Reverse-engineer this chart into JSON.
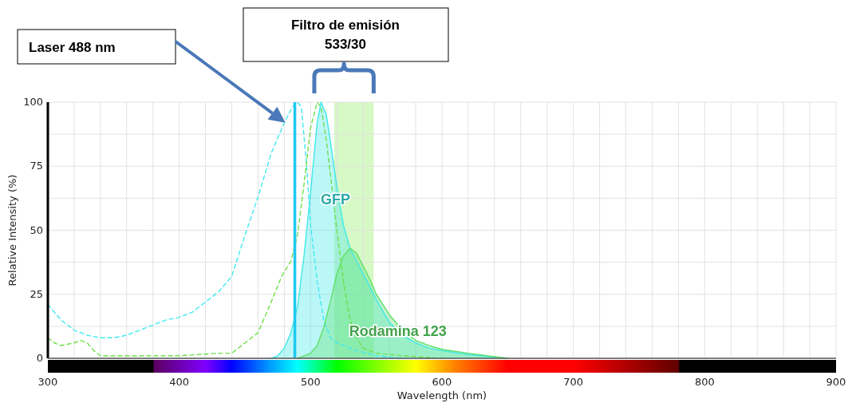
{
  "chart_data": {
    "type": "area",
    "xlabel": "Wavelength (nm)",
    "ylabel": "Relative Intensity (%)",
    "xlim": [
      300,
      900
    ],
    "xticks": [
      300,
      {
        "value": 320,
        "label": null
      },
      {
        "value": 340,
        "label": null
      },
      {
        "value": 360,
        "label": null
      },
      {
        "value": 380,
        "label": null
      },
      400,
      {
        "value": 420,
        "label": null
      },
      {
        "value": 440,
        "label": null
      },
      {
        "value": 460,
        "label": null
      },
      {
        "value": 480,
        "label": null
      },
      500,
      {
        "value": 520,
        "label": null
      },
      {
        "value": 540,
        "label": null
      },
      {
        "value": 560,
        "label": null
      },
      {
        "value": 580,
        "label": null
      },
      600,
      {
        "value": 620,
        "label": null
      },
      {
        "value": 640,
        "label": null
      },
      {
        "value": 660,
        "label": null
      },
      {
        "value": 680,
        "label": null
      },
      700,
      {
        "value": 720,
        "label": null
      },
      {
        "value": 740,
        "label": null
      },
      {
        "value": 760,
        "label": null
      },
      {
        "value": 780,
        "label": null
      },
      800,
      {
        "value": 820,
        "label": null
      },
      {
        "value": 840,
        "label": null
      },
      {
        "value": 860,
        "label": null
      },
      {
        "value": 880,
        "label": null
      },
      900
    ],
    "ylim": [
      0,
      100
    ],
    "yticks": [
      0,
      {
        "value": 12.5,
        "label": null
      },
      25,
      {
        "value": 37.5,
        "label": null
      },
      50,
      {
        "value": 62.5,
        "label": null
      },
      75,
      {
        "value": 87.5,
        "label": null
      },
      100
    ],
    "grid": true,
    "legend": false,
    "series": [
      {
        "type": "line",
        "line_style": "dashed",
        "color": "#40eaf2",
        "x": [
          300,
          310,
          320,
          330,
          340,
          350,
          360,
          370,
          380,
          390,
          400,
          410,
          420,
          430,
          440,
          450,
          460,
          470,
          480,
          486,
          490,
          493,
          497,
          500,
          505,
          510,
          515,
          520,
          525,
          535,
          550,
          570
        ],
        "values": [
          21,
          15,
          11,
          9,
          8,
          8,
          9,
          11,
          13,
          15,
          16,
          18,
          22,
          26,
          32,
          48,
          63,
          80,
          92,
          98,
          100,
          98,
          75,
          52,
          30,
          15,
          8,
          6,
          5,
          3,
          1,
          0
        ]
      },
      {
        "type": "line",
        "line_style": "dashed",
        "color": "#6ee04a",
        "x": [
          300,
          305,
          310,
          320,
          325,
          330,
          335,
          340,
          350,
          400,
          430,
          440,
          450,
          460,
          470,
          478,
          485,
          490,
          495,
          500,
          505,
          508,
          512,
          515,
          520,
          525,
          530,
          535,
          540,
          550,
          570,
          600
        ],
        "values": [
          8,
          6,
          5,
          6,
          7,
          6,
          3,
          1,
          1,
          1,
          2,
          2,
          6,
          10,
          22,
          32,
          38,
          48,
          68,
          90,
          100,
          98,
          85,
          72,
          50,
          30,
          15,
          8,
          4,
          2,
          1,
          0
        ]
      },
      {
        "name": "GFP",
        "color": "#40e8e8",
        "x": [
          470,
          475,
          480,
          485,
          490,
          495,
          500,
          505,
          508,
          512,
          515,
          520,
          525,
          530,
          535,
          540,
          545,
          550,
          560,
          570,
          580,
          590,
          600,
          620,
          650
        ],
        "values": [
          0,
          1,
          4,
          10,
          20,
          40,
          65,
          92,
          100,
          95,
          85,
          67,
          52,
          43,
          38,
          33,
          28,
          23,
          14,
          9,
          6,
          4,
          3,
          1.5,
          0
        ]
      },
      {
        "name": "Rodamina 123",
        "color": "#5ee06a",
        "x": [
          490,
          495,
          500,
          505,
          510,
          515,
          520,
          525,
          530,
          535,
          540,
          545,
          550,
          560,
          570,
          580,
          590,
          600,
          620,
          650
        ],
        "values": [
          0,
          1,
          2,
          5,
          12,
          22,
          33,
          40,
          43,
          41,
          36,
          31,
          25,
          17,
          11,
          7,
          5,
          3.5,
          2,
          0
        ]
      }
    ],
    "annotations": [
      "Laser 488 nm",
      "Filtro de emisión\n533/30"
    ],
    "ref_lines": [
      {
        "axis": "x",
        "value": 488,
        "color": "#1ec8f0"
      }
    ],
    "bands": [
      {
        "axis": "x",
        "from": 518,
        "to": 548,
        "color": "#ccf7b8"
      }
    ]
  }
}
